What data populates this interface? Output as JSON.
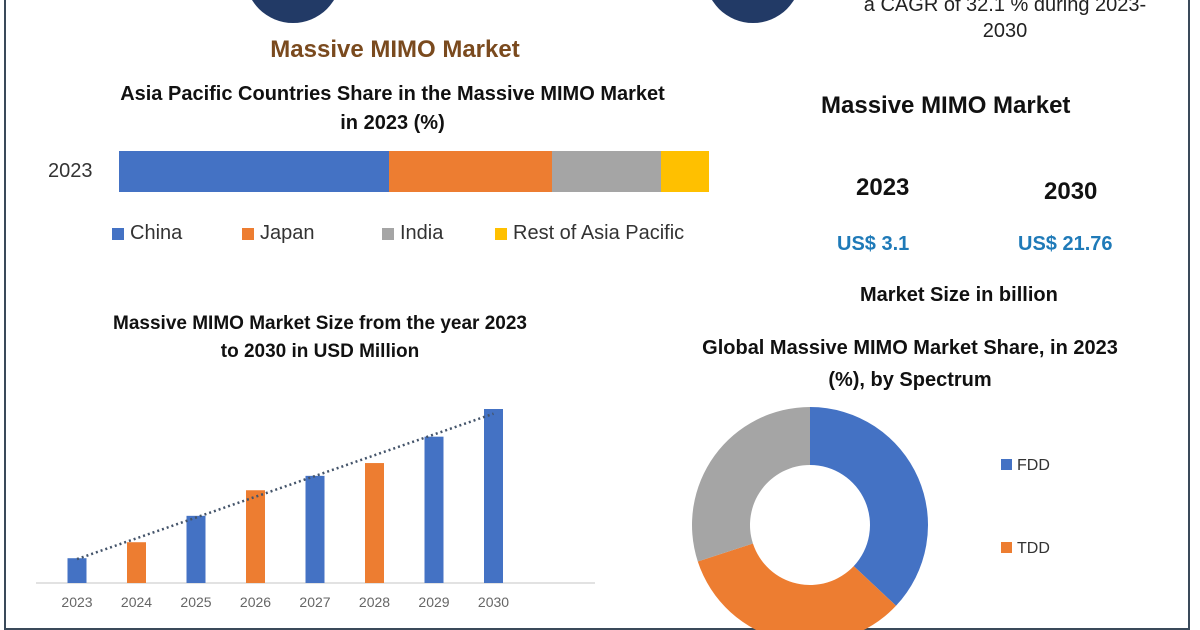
{
  "header": {
    "cagr_text_line1": "a CAGR of 32.1 % during 2023-",
    "cagr_text_line2": "2030",
    "main_title": "Massive MIMO Market",
    "main_title_color": "#7a4a1e"
  },
  "summary": {
    "title": "Massive MIMO Market",
    "year_start": "2023",
    "year_end": "2030",
    "value_start": "US$ 3.1",
    "value_end": "US$ 21.76",
    "unit_label": "Market Size in billion",
    "value_color": "#1f7ab8"
  },
  "chart_data": [
    {
      "type": "bar",
      "orientation": "horizontal-stacked",
      "title": "Asia Pacific Countries Share in the  Massive MIMO Market  in 2023 (%)",
      "categories": [
        "2023"
      ],
      "xlim": [
        0,
        100
      ],
      "grid": false,
      "legend": "bottom",
      "series": [
        {
          "name": "China",
          "values": [
            45.8
          ],
          "color": "#4472c4"
        },
        {
          "name": "Japan",
          "values": [
            27.6
          ],
          "color": "#ed7d31"
        },
        {
          "name": "India",
          "values": [
            18.5
          ],
          "color": "#a5a5a5"
        },
        {
          "name": "Rest of Asia Pacific",
          "values": [
            8.1
          ],
          "color": "#ffc000"
        }
      ]
    },
    {
      "type": "bar",
      "title": "Massive MIMO Market Size from the year 2023 to 2030 in USD Million",
      "categories": [
        "2023",
        "2024",
        "2025",
        "2026",
        "2027",
        "2028",
        "2029",
        "2030"
      ],
      "values": [
        3.1,
        5.1,
        8.4,
        11.6,
        13.4,
        15.0,
        18.3,
        21.76
      ],
      "colors": [
        "#4472c4",
        "#ed7d31",
        "#4472c4",
        "#ed7d31",
        "#4472c4",
        "#ed7d31",
        "#4472c4",
        "#4472c4"
      ],
      "trendline": "linear-dotted",
      "grid": false
    },
    {
      "type": "pie",
      "donut": true,
      "title": "Global Massive MIMO Market  Share, in 2023 (%), by Spectrum",
      "legend": "right",
      "slices": [
        {
          "name": "FDD",
          "value": 37,
          "color": "#4472c4"
        },
        {
          "name": "TDD",
          "value": 33,
          "color": "#ed7d31"
        },
        {
          "value": 30,
          "color": "#a5a5a5"
        }
      ]
    }
  ]
}
